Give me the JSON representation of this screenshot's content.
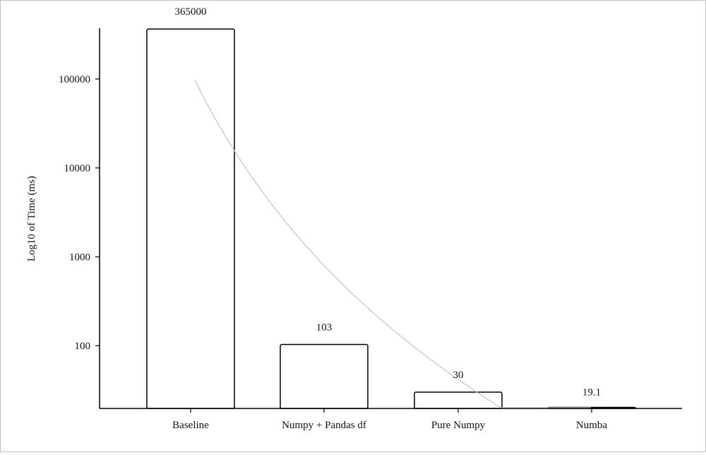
{
  "chart_data": {
    "type": "bar",
    "title": "",
    "xlabel": "",
    "ylabel": "Log10 of Time (ms)",
    "y_scale": "log",
    "ylim": [
      20,
      365000
    ],
    "y_ticks": [
      100,
      1000,
      10000,
      100000
    ],
    "y_tick_labels": [
      "100",
      "1000",
      "10000",
      "100000"
    ],
    "categories": [
      "Baseline",
      "Numpy + Pandas df",
      "Pure Numpy",
      "Numba"
    ],
    "values": [
      365000,
      103,
      30,
      19.1
    ],
    "data_labels": [
      "365000",
      "103",
      "30",
      "19.1"
    ],
    "trendline": "logarithmic",
    "grid": false,
    "legend": "none",
    "colors": {
      "bar_fill": "#ffffff",
      "bar_stroke": "#000000",
      "trendline": "#c8c8c8",
      "axis": "#000000"
    }
  }
}
